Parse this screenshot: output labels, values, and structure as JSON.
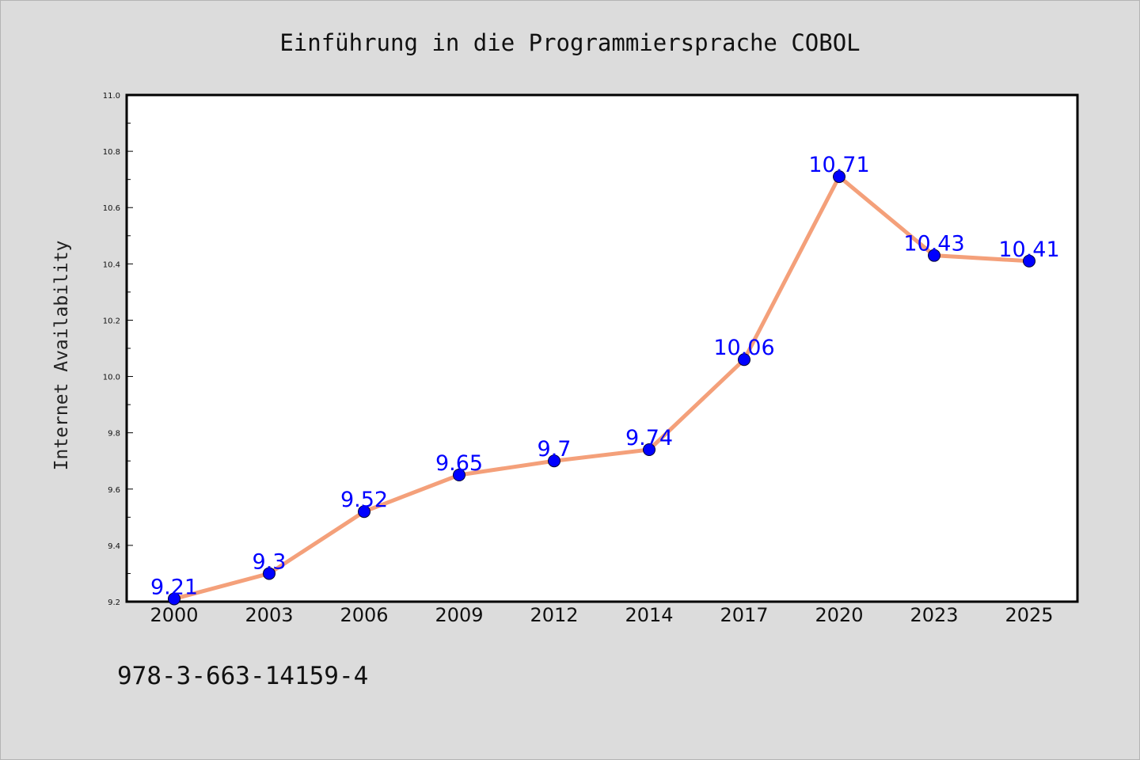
{
  "chart_data": {
    "type": "line",
    "title": "Einführung in die Programmiersprache COBOL",
    "ylabel": "Internet Availability",
    "xlabel": "",
    "categories": [
      "2000",
      "2003",
      "2006",
      "2009",
      "2012",
      "2014",
      "2017",
      "2020",
      "2023",
      "2025"
    ],
    "series": [
      {
        "values": [
          9.21,
          9.3,
          9.52,
          9.65,
          9.7,
          9.74,
          10.06,
          10.71,
          10.43,
          10.41
        ],
        "data_labels": [
          "9.21",
          "9.3",
          "9.52",
          "9.65",
          "9.7",
          "9.74",
          "10.06",
          "10.71",
          "10.43",
          "10.41"
        ],
        "line_color": "#f4a07a",
        "marker_color": "#0000ff"
      }
    ],
    "ylim": [
      9.2,
      11.0
    ],
    "yticks": [
      "9.2",
      "9.4",
      "9.6",
      "9.8",
      "10.0",
      "10.2",
      "10.4",
      "10.6",
      "10.8",
      "11.0"
    ],
    "grid": false,
    "legend": "none"
  },
  "footer": {
    "isbn": "978-3-663-14159-4"
  },
  "colors": {
    "background": "#dcdcdc",
    "plot_background": "#ffffff",
    "axis": "#000000",
    "label_color": "#0000ff"
  }
}
